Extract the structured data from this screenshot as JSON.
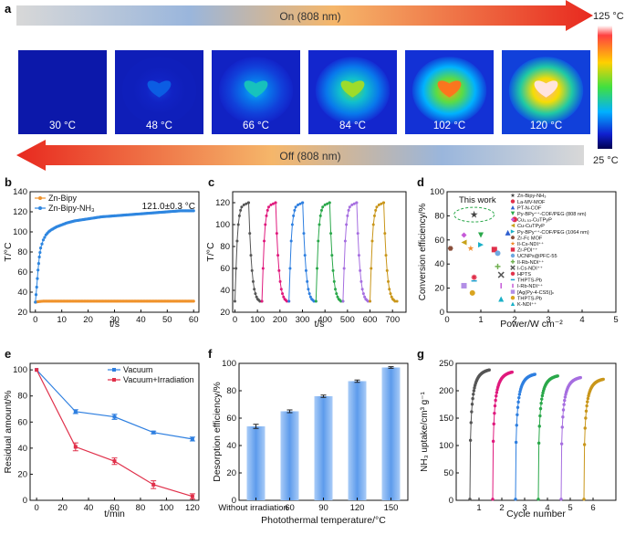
{
  "panel_a": {
    "letter": "a",
    "on_label": "On (808 nm)",
    "off_label": "Off (808 nm)",
    "scale_max": "125 °C",
    "scale_min": "25 °C",
    "thermal_images": [
      {
        "label": "30 °C",
        "intensity": 0.0
      },
      {
        "label": "48 °C",
        "intensity": 0.23
      },
      {
        "label": "66 °C",
        "intensity": 0.41
      },
      {
        "label": "84 °C",
        "intensity": 0.59
      },
      {
        "label": "102 °C",
        "intensity": 0.77
      },
      {
        "label": "120 °C",
        "intensity": 0.95
      }
    ],
    "colors": {
      "arrow_red": "#e8291f",
      "arrow_orange": "#f58a1f",
      "arrow_blue": "#8fb0d8"
    }
  },
  "chart_data": [
    {
      "id": "b",
      "letter": "b",
      "type": "line",
      "xlabel": "t/s",
      "ylabel": "T/°C",
      "xlim": [
        -2,
        62
      ],
      "ylim": [
        20,
        140
      ],
      "xticks": [
        0,
        10,
        20,
        30,
        40,
        50,
        60
      ],
      "yticks": [
        20,
        40,
        60,
        80,
        100,
        120,
        140
      ],
      "annotation": "121.0±0.3 °C",
      "legend_position": "top-left",
      "series": [
        {
          "name": "Zn-Bipy",
          "color": "#f0922b",
          "x": [
            0,
            1,
            2,
            3,
            5,
            8,
            10,
            15,
            20,
            25,
            30,
            35,
            40,
            45,
            50,
            55,
            60
          ],
          "y": [
            30,
            30.5,
            30.8,
            31,
            31,
            31,
            31,
            31,
            31,
            31,
            31,
            31,
            31,
            31,
            31,
            31,
            31
          ]
        },
        {
          "name": "Zn-Bipy-NH₃",
          "color": "#2e86e0",
          "x": [
            0,
            0.5,
            1,
            1.5,
            2,
            3,
            4,
            5,
            6,
            8,
            10,
            12,
            15,
            20,
            25,
            30,
            35,
            40,
            45,
            50,
            55,
            60
          ],
          "y": [
            30,
            45,
            62,
            75,
            84,
            92,
            97,
            100,
            102,
            105,
            107,
            109,
            111,
            113,
            115,
            116,
            117,
            118,
            119,
            120,
            121,
            121
          ]
        }
      ]
    },
    {
      "id": "c",
      "letter": "c",
      "type": "line",
      "xlabel": "t/s",
      "ylabel": "T/°C",
      "xlim": [
        -10,
        760
      ],
      "ylim": [
        20,
        130
      ],
      "xticks": [
        0,
        100,
        200,
        300,
        400,
        500,
        600,
        700
      ],
      "yticks": [
        20,
        40,
        60,
        80,
        100,
        120
      ],
      "cycles": [
        {
          "start": 0,
          "color": "#555555"
        },
        {
          "start": 120,
          "color": "#e0197d"
        },
        {
          "start": 240,
          "color": "#2e7fe0"
        },
        {
          "start": 360,
          "color": "#2aa84a"
        },
        {
          "start": 480,
          "color": "#a66ee0"
        },
        {
          "start": 600,
          "color": "#c9961a"
        }
      ],
      "cycle_shape": {
        "t": [
          0,
          5,
          10,
          15,
          20,
          25,
          30,
          40,
          50,
          60,
          61,
          66,
          71,
          76,
          81,
          86,
          91,
          96,
          101,
          106,
          111,
          120
        ],
        "T": [
          30,
          60,
          85,
          100,
          108,
          113,
          116,
          118,
          119,
          120,
          120,
          92,
          72,
          58,
          48,
          41,
          37,
          34,
          32,
          31,
          30,
          30
        ]
      }
    },
    {
      "id": "d",
      "letter": "d",
      "type": "scatter",
      "xlabel": "Power/W cm⁻²",
      "ylabel": "Conversion efficiency/%",
      "xlim": [
        0,
        5
      ],
      "ylim": [
        0,
        100
      ],
      "xticks": [
        0,
        1,
        2,
        3,
        4,
        5
      ],
      "yticks": [
        0,
        20,
        40,
        60,
        80,
        100
      ],
      "annotation": "This work",
      "points": [
        {
          "name": "Zn-Bipy-NH₃",
          "marker": "star",
          "color": "#444444",
          "x": 0.8,
          "y": 81
        },
        {
          "name": "La-MV-MOF",
          "marker": "circle",
          "color": "#e0304a",
          "x": 2.0,
          "y": 77
        },
        {
          "name": "PT-N-COF",
          "marker": "triangle-up",
          "color": "#2e5fd0",
          "x": 1.8,
          "y": 66
        },
        {
          "name": "Py-BPy⁺⁺-COF/PEG (808 nm)",
          "marker": "triangle-down",
          "color": "#2aa84a",
          "x": 1.0,
          "y": 64
        },
        {
          "name": "Cu₁.₅₃-CuTPyP",
          "marker": "diamond",
          "color": "#c65ad8",
          "x": 0.5,
          "y": 64
        },
        {
          "name": "Cu-CuTPyP",
          "marker": "triangle-left",
          "color": "#c7a21a",
          "x": 0.5,
          "y": 58
        },
        {
          "name": "Py-BPy⁺⁺-COF/PEG (1064 nm)",
          "marker": "triangle-right",
          "color": "#1ab0c7",
          "x": 1.0,
          "y": 56
        },
        {
          "name": "Zr-Fc MOF",
          "marker": "hexagon",
          "color": "#8a4e3a",
          "x": 0.1,
          "y": 53
        },
        {
          "name": "Il-Cs-NDI⁺⁺",
          "marker": "star",
          "color": "#f08a2a",
          "x": 0.7,
          "y": 53
        },
        {
          "name": "Zr-PDI⁺⁺",
          "marker": "square",
          "color": "#e0304a",
          "x": 1.4,
          "y": 52
        },
        {
          "name": "UCNPs@PFC-55",
          "marker": "circle",
          "color": "#6fa8e0",
          "x": 1.5,
          "y": 49
        },
        {
          "name": "Il-Rb-NDI⁺⁺",
          "marker": "plus",
          "color": "#70b050",
          "x": 1.5,
          "y": 38
        },
        {
          "name": "I-Cs-NDI⁺⁺",
          "marker": "x",
          "color": "#555555",
          "x": 1.6,
          "y": 31
        },
        {
          "name": "HPTS",
          "marker": "asterisk",
          "color": "#e0304a",
          "x": 0.8,
          "y": 29
        },
        {
          "name": "THPTS-Pb",
          "marker": "hline",
          "color": "#1a9fd0",
          "x": 0.8,
          "y": 26
        },
        {
          "name": "I-Rb-NDI⁺⁺",
          "marker": "vline",
          "color": "#c65ad8",
          "x": 1.6,
          "y": 22
        },
        {
          "name": "[Ag(Py-4-CS5)]ₙ",
          "marker": "square",
          "color": "#b28ee6",
          "x": 0.5,
          "y": 22
        },
        {
          "name": "THPTS-Pb",
          "marker": "circle",
          "color": "#d9a420",
          "x": 0.75,
          "y": 16
        },
        {
          "name": "K-NDI⁺⁺",
          "marker": "triangle-up",
          "color": "#1ab0c7",
          "x": 1.6,
          "y": 11
        }
      ]
    },
    {
      "id": "e",
      "letter": "e",
      "type": "line",
      "xlabel": "t/min",
      "ylabel": "Residual amount/%",
      "xlim": [
        -5,
        125
      ],
      "ylim": [
        0,
        105
      ],
      "xticks": [
        0,
        20,
        40,
        60,
        80,
        100,
        120
      ],
      "yticks": [
        0,
        20,
        40,
        60,
        80,
        100
      ],
      "legend_position": "top-right",
      "series": [
        {
          "name": "Vacuum",
          "color": "#2e7fe0",
          "x": [
            0,
            30,
            60,
            90,
            120
          ],
          "y": [
            100,
            68,
            64,
            52,
            47
          ],
          "err": [
            0,
            1.5,
            2,
            1,
            1.5
          ]
        },
        {
          "name": "Vacuum+Irradiation",
          "color": "#e0304a",
          "x": [
            0,
            30,
            60,
            90,
            120
          ],
          "y": [
            100,
            41,
            30,
            12,
            3
          ],
          "err": [
            0,
            3,
            2.5,
            3,
            2
          ]
        }
      ]
    },
    {
      "id": "f",
      "letter": "f",
      "type": "bar",
      "xlabel": "Photothermal temperature/°C",
      "ylabel": "Desorption efficiency/%",
      "ylim": [
        0,
        100
      ],
      "yticks": [
        0,
        20,
        40,
        60,
        80,
        100
      ],
      "categories": [
        "Without irradiation",
        "60",
        "90",
        "120",
        "150"
      ],
      "values": [
        54,
        65,
        76,
        87,
        97
      ],
      "err": [
        1.5,
        1,
        0.8,
        0.8,
        0.6
      ],
      "color": "#6aa6f0"
    },
    {
      "id": "g",
      "letter": "g",
      "type": "scatter",
      "xlabel": "Cycle number",
      "ylabel": "NH₃ uptake/cm³ g⁻¹",
      "xlim": [
        0,
        7
      ],
      "ylim": [
        0,
        250
      ],
      "xticks": [
        1,
        2,
        3,
        4,
        5,
        6
      ],
      "yticks": [
        0,
        50,
        100,
        150,
        200,
        250
      ],
      "cycles": [
        {
          "x0": 0.45,
          "x1": 1.45,
          "max": 238,
          "color": "#555555"
        },
        {
          "x0": 1.45,
          "x1": 2.45,
          "max": 234,
          "color": "#e0197d"
        },
        {
          "x0": 2.45,
          "x1": 3.45,
          "max": 230,
          "color": "#2e7fe0"
        },
        {
          "x0": 3.45,
          "x1": 4.45,
          "max": 227,
          "color": "#2aa84a"
        },
        {
          "x0": 4.45,
          "x1": 5.45,
          "max": 224,
          "color": "#a66ee0"
        },
        {
          "x0": 5.45,
          "x1": 6.45,
          "max": 221,
          "color": "#c9961a"
        }
      ]
    }
  ]
}
